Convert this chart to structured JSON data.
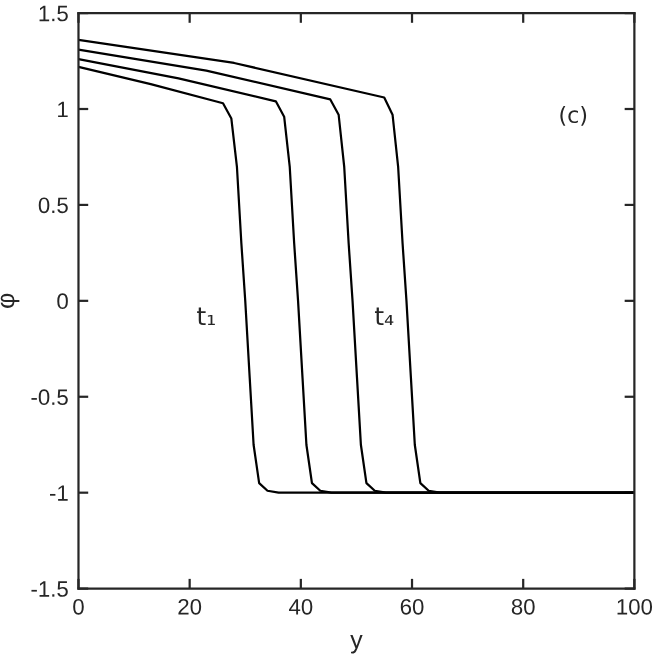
{
  "chart_data": {
    "type": "line",
    "xlabel": "y",
    "ylabel": "φ",
    "xlim": [
      0,
      100
    ],
    "ylim": [
      -1.5,
      1.5
    ],
    "xticks": [
      0,
      20,
      40,
      60,
      80,
      100
    ],
    "yticks": [
      -1.5,
      -1,
      -0.5,
      0,
      0.5,
      1,
      1.5
    ],
    "grid": false,
    "legend": false,
    "marker": "none",
    "line_style": "solid",
    "annotations": [
      "(c)",
      "t₁",
      "t₄"
    ],
    "series": [
      {
        "color": "#000000",
        "x": [
          0,
          13,
          26,
          27.5,
          28.5,
          29.3,
          30,
          30.8,
          31.5,
          32.5,
          34,
          36,
          100
        ],
        "values": [
          1.22,
          1.13,
          1.03,
          0.95,
          0.7,
          0.3,
          0,
          -0.4,
          -0.75,
          -0.95,
          -0.99,
          -1,
          -1
        ]
      },
      {
        "color": "#000000",
        "x": [
          0,
          18,
          35.5,
          37,
          38,
          38.8,
          39.5,
          40.3,
          41,
          42,
          43.5,
          45.5,
          100
        ],
        "values": [
          1.26,
          1.16,
          1.04,
          0.96,
          0.7,
          0.3,
          0,
          -0.4,
          -0.75,
          -0.95,
          -0.99,
          -1,
          -1
        ]
      },
      {
        "color": "#000000",
        "x": [
          0,
          23,
          45.3,
          46.8,
          47.8,
          48.6,
          49.3,
          50.1,
          50.8,
          51.8,
          53.3,
          55.3,
          100
        ],
        "values": [
          1.31,
          1.2,
          1.05,
          0.97,
          0.7,
          0.3,
          0,
          -0.4,
          -0.75,
          -0.95,
          -0.99,
          -1,
          -1
        ]
      },
      {
        "color": "#000000",
        "x": [
          0,
          28,
          55,
          56.5,
          57.5,
          58.3,
          59,
          59.8,
          60.5,
          61.5,
          63,
          65,
          100
        ],
        "values": [
          1.36,
          1.24,
          1.06,
          0.97,
          0.7,
          0.3,
          0,
          -0.4,
          -0.75,
          -0.95,
          -0.99,
          -1,
          -1
        ]
      }
    ]
  }
}
